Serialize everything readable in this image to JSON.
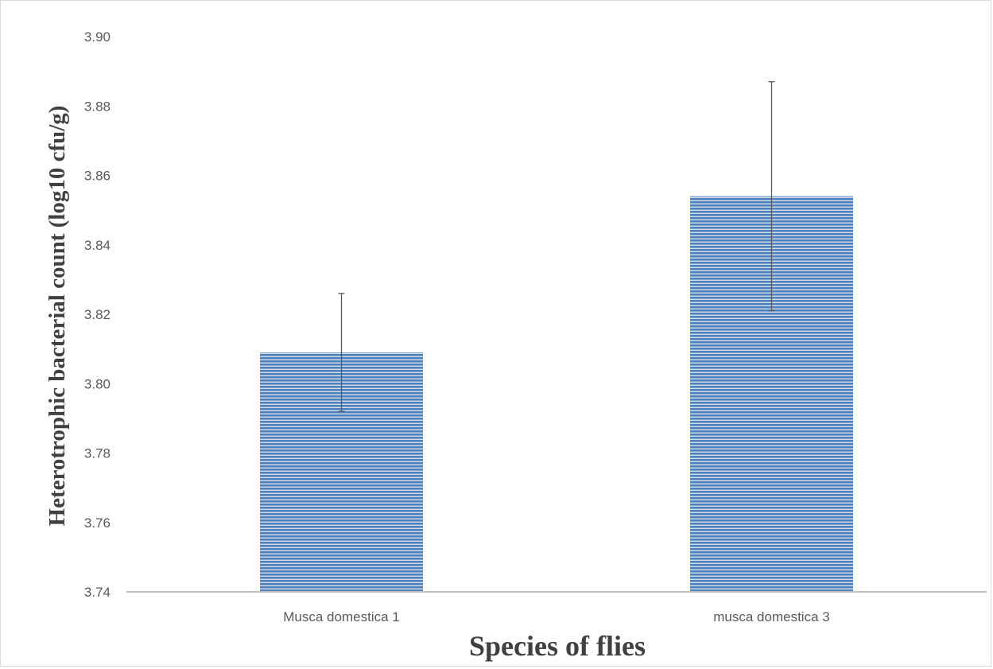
{
  "chart_data": {
    "type": "bar",
    "categories": [
      "Musca domestica 1",
      "musca domestica 3"
    ],
    "values": [
      3.809,
      3.854
    ],
    "error": [
      0.017,
      0.033
    ],
    "title": "",
    "xlabel": "Species of flies",
    "ylabel": "Heterotrophic bacterial count (log10 cfu/g)",
    "ylim": [
      3.74,
      3.9
    ],
    "yticks": [
      "3.74",
      "3.76",
      "3.78",
      "3.80",
      "3.82",
      "3.84",
      "3.86",
      "3.88",
      "3.90"
    ],
    "grid": false,
    "legend": "none",
    "bar_color": "#4f81bd",
    "bar_stripe_color": "#ffffff",
    "axis_color": "#bfbfbf",
    "error_bar_color": "#595959"
  }
}
